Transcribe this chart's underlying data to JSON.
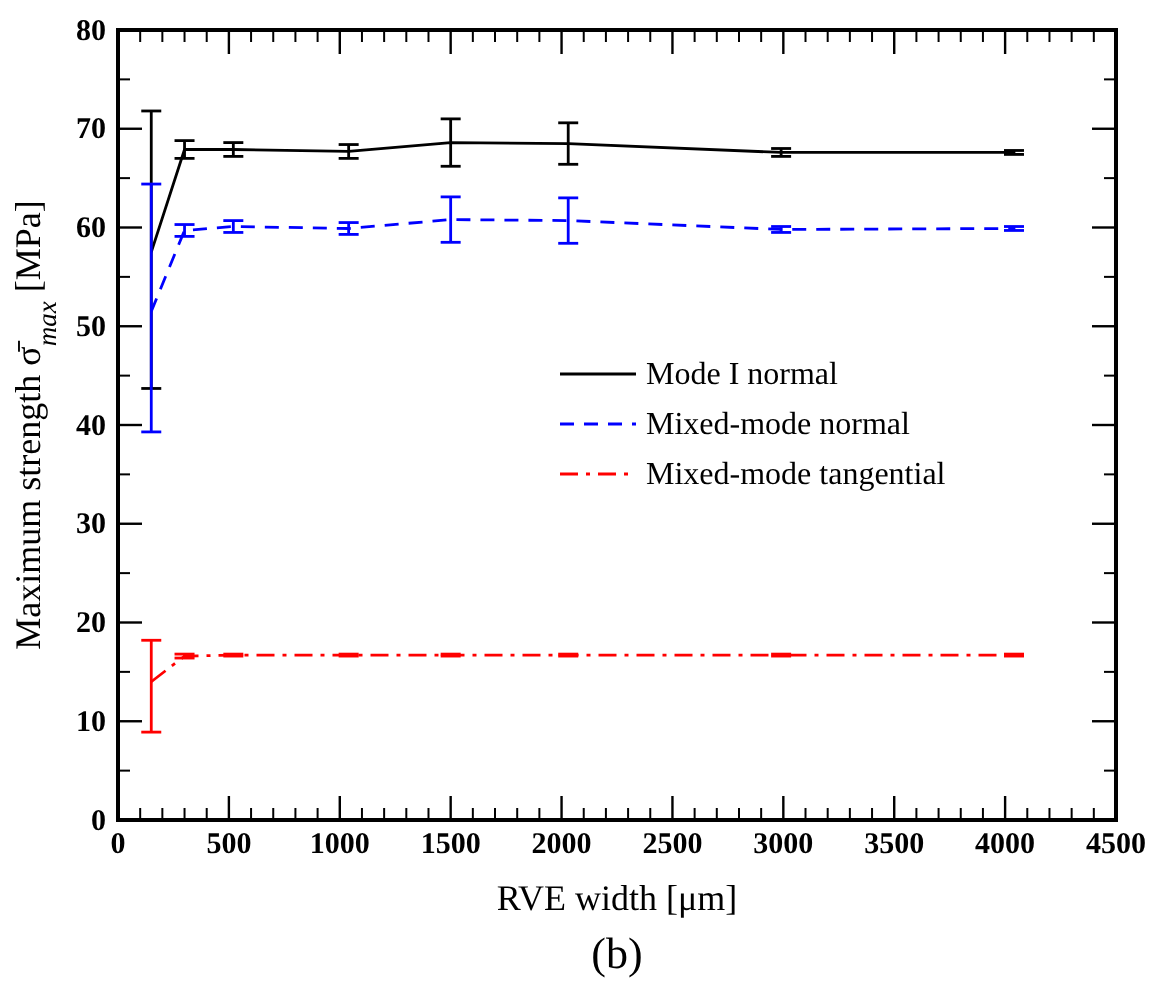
{
  "chart_data": {
    "type": "line",
    "xlabel": "RVE width [μm]",
    "ylabel": "Maximum strength σ̄$_{max}$ [MPa]",
    "x": [
      150,
      300,
      520,
      1040,
      1500,
      2030,
      2990,
      4040
    ],
    "series": [
      {
        "name": "Mode I normal",
        "color": "#000000",
        "line_style": "solid",
        "values": [
          57.5,
          67.9,
          67.9,
          67.7,
          68.6,
          68.5,
          67.6,
          67.6
        ],
        "errors": [
          [
            43.7,
            71.8
          ],
          0.9,
          0.7,
          0.7,
          2.4,
          2.1,
          0.4,
          0.2
        ]
      },
      {
        "name": "Mixed-mode normal",
        "color": "#0000ff",
        "line_style": "dashed",
        "values": [
          51.5,
          59.7,
          60.1,
          59.9,
          60.8,
          60.7,
          59.8,
          59.9
        ],
        "errors": [
          [
            39.3,
            64.4
          ],
          0.6,
          0.6,
          0.6,
          2.3,
          2.3,
          0.3,
          0.2
        ]
      },
      {
        "name": "Mixed-mode tangential",
        "color": "#ff0000",
        "line_style": "dashdot",
        "values": [
          14.0,
          16.6,
          16.7,
          16.7,
          16.7,
          16.7,
          16.7,
          16.7
        ],
        "errors": [
          [
            8.9,
            18.2
          ],
          0.2,
          0.1,
          0.1,
          0.1,
          0.1,
          0.1,
          0.1
        ]
      }
    ],
    "xlim": [
      0,
      4500
    ],
    "xticks": [
      0,
      500,
      1000,
      1500,
      2000,
      2500,
      3000,
      3500,
      4000,
      4500
    ],
    "ylim": [
      0,
      80
    ],
    "yticks": [
      0,
      10,
      20,
      30,
      40,
      50,
      60,
      70,
      80
    ],
    "grid": false,
    "legend": "center right",
    "marker": "none",
    "annotations": [
      "(b)"
    ]
  }
}
